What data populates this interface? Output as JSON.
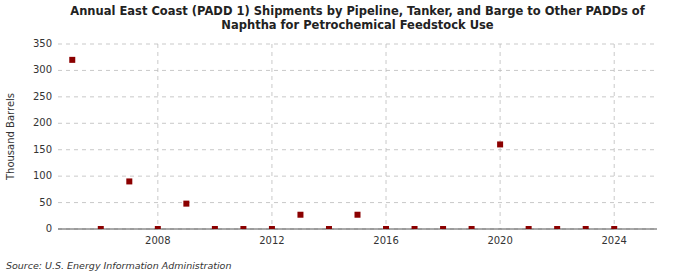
{
  "chart_data": {
    "type": "scatter",
    "title": "Annual East Coast (PADD 1) Shipments by Pipeline, Tanker, and Barge to Other PADDs of\nNaphtha for Petrochemical Feedstock Use",
    "ylabel": "Thousand Barrels",
    "source": "Source: U.S. Energy Information Administration",
    "x": [
      2005,
      2006,
      2007,
      2008,
      2009,
      2010,
      2011,
      2012,
      2013,
      2014,
      2015,
      2016,
      2017,
      2018,
      2019,
      2020,
      2021,
      2022,
      2023,
      2024
    ],
    "values": [
      320,
      0,
      90,
      0,
      48,
      0,
      0,
      0,
      27,
      0,
      27,
      0,
      0,
      0,
      0,
      160,
      0,
      0,
      0,
      0
    ],
    "color": "#8b0000",
    "marker": "square",
    "xlim": [
      2004.5,
      2025.5
    ],
    "ylim": [
      0,
      350
    ],
    "xticks": [
      2008,
      2012,
      2016,
      2020,
      2024
    ],
    "yticks": [
      0,
      50,
      100,
      150,
      200,
      250,
      300,
      350
    ],
    "grid": true
  }
}
